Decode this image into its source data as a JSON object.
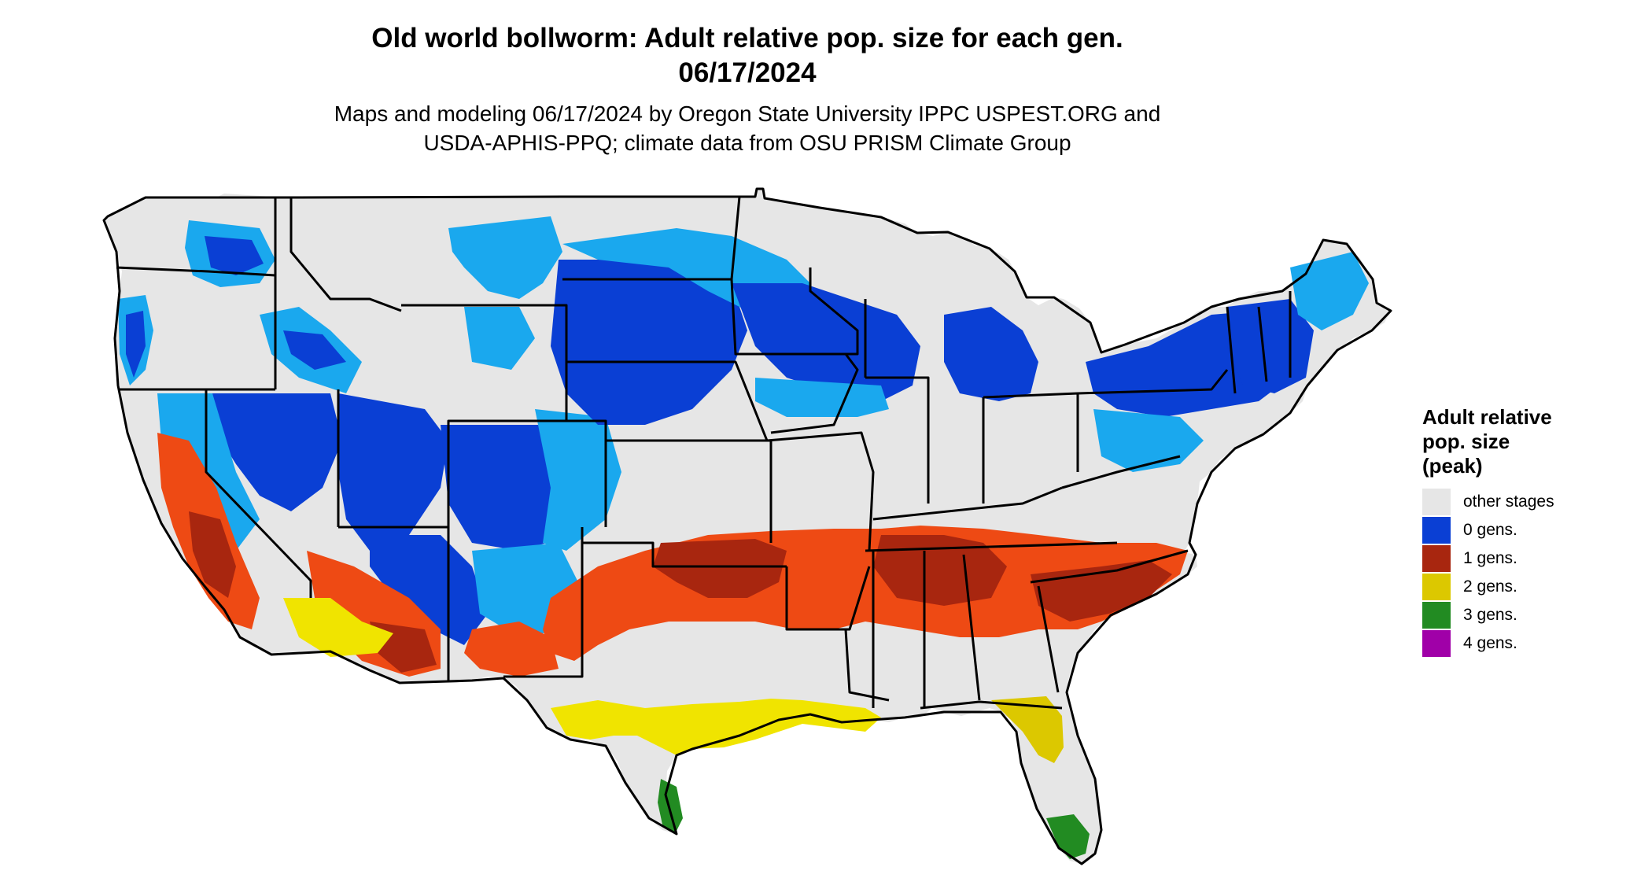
{
  "title": {
    "line1": "Old world bollworm: Adult relative pop. size for each gen.",
    "line2": "06/17/2024"
  },
  "subtitle": {
    "line1": "Maps and modeling 06/17/2024 by Oregon State University IPPC USPEST.ORG and",
    "line2": "USDA-APHIS-PPQ; climate data from OSU PRISM Climate Group"
  },
  "legend": {
    "title_line1": "Adult relative",
    "title_line2": "pop. size",
    "title_line3": "(peak)",
    "items": [
      {
        "label": "other stages",
        "color": "#e6e6e6"
      },
      {
        "label": "0 gens.",
        "color": "#0a3fd4"
      },
      {
        "label": "1 gens.",
        "color": "#a8260f"
      },
      {
        "label": "2 gens.",
        "color": "#dcc800"
      },
      {
        "label": "3 gens.",
        "color": "#228b22"
      },
      {
        "label": "4 gens.",
        "color": "#a000a8"
      }
    ]
  },
  "colors": {
    "background_land": "#e6e6e6",
    "gen0_light": "#1aa8ee",
    "gen0_mid": "#0a6fe6",
    "gen0_dark": "#0a3fd4",
    "gen1_light": "#ee4a14",
    "gen1_dark": "#a8260f",
    "gen2_bright": "#f0e400",
    "gen3": "#228b22",
    "state_border": "#000000"
  }
}
